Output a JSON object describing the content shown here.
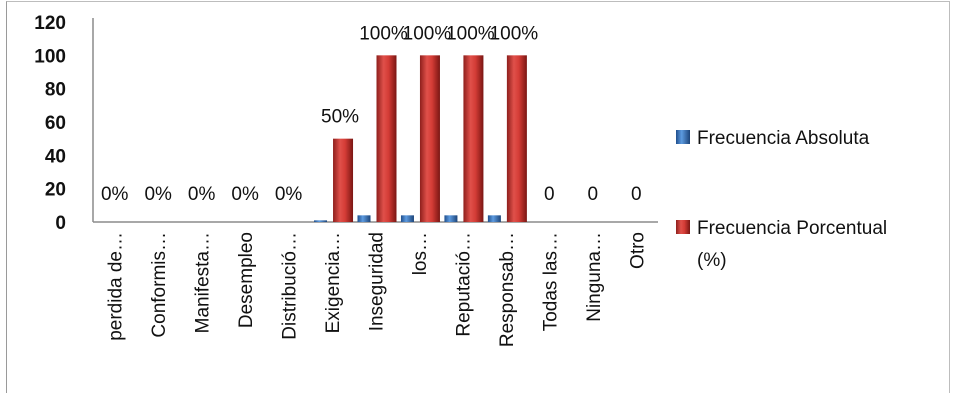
{
  "chart_data": {
    "type": "bar",
    "title": "",
    "xlabel": "",
    "ylabel": "",
    "ylim": [
      0,
      120
    ],
    "yticks": [
      "0",
      "20",
      "40",
      "60",
      "80",
      "100",
      "120"
    ],
    "grid": false,
    "legend_position": "right",
    "categories": [
      "perdida de…",
      "Conformis…",
      "Manifesta…",
      "Desempleo",
      "Distribució…",
      "Exigencia…",
      "Inseguridad",
      "los…",
      "Reputació…",
      "Responsab…",
      "Todas las…",
      "Ninguna…",
      "Otro"
    ],
    "series": [
      {
        "name": "Frecuencia Absoluta",
        "values": [
          0,
          0,
          0,
          0,
          0,
          1,
          4,
          4,
          4,
          4,
          0,
          0,
          0
        ]
      },
      {
        "name": "Frecuencia Porcentual (%)",
        "values": [
          0,
          0,
          0,
          0,
          0,
          50,
          100,
          100,
          100,
          100,
          0,
          0,
          0
        ]
      }
    ],
    "data_labels": [
      "0%",
      "0%",
      "0%",
      "0%",
      "0%",
      "50%",
      "100%",
      "100%",
      "100%",
      "100%",
      "0",
      "0",
      "0"
    ],
    "colors": {
      "absolute": "#4f81bd",
      "percent": "#c0504d"
    }
  }
}
